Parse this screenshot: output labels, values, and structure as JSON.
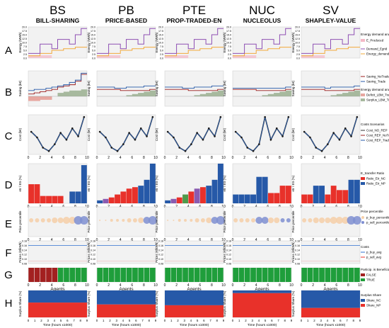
{
  "chart_data": {
    "type": "figure-grid",
    "columns": [
      {
        "abbr": "BS",
        "name": "BILL-SHARING"
      },
      {
        "abbr": "PB",
        "name": "PRICE-BASED"
      },
      {
        "abbr": "PTE",
        "name": "PROP-TRADED-EN"
      },
      {
        "abbr": "NUC",
        "name": "NUCLEOLUS"
      },
      {
        "abbr": "SV",
        "name": "SHAPLEY-VALUE"
      }
    ],
    "row_letters": [
      "A",
      "B",
      "C",
      "D",
      "E",
      "F",
      "G",
      "H"
    ],
    "agents": [
      1,
      2,
      3,
      4,
      5,
      6,
      7,
      8,
      9,
      10
    ],
    "agent_ticks": [
      "0",
      "2",
      "4",
      "6",
      "8",
      "10"
    ],
    "time_ticks": [
      "0",
      "1",
      "2",
      "3",
      "4",
      "5",
      "6",
      "7",
      "8",
      "9"
    ],
    "xlabel_agents": "Agents",
    "xlabel_time": "Time (hours x1000)",
    "colors": {
      "demand": "#f2a93b",
      "produced": "#8e4fb3",
      "pink": "#f4b8c6",
      "blue": "#2659a8",
      "red": "#e8312a",
      "green": "#1f9e3b",
      "darkred": "#9b1c1c",
      "grey": "#8a8a8a",
      "bubble": "#f6cfa8",
      "bubble_blue": "#7f8fd1",
      "line_f": "#2f6fd0",
      "gray_band": "#f0f0f0"
    },
    "rowA": {
      "ylabel": "Energy (MWh)",
      "yticks": [
        "0.0",
        "2.5",
        "5.0",
        "7.5",
        "10.0",
        "12.5",
        "15.0",
        "17.5",
        "20.0"
      ],
      "ylim": [
        0,
        20
      ],
      "demand": [
        [
          1.5,
          1.5,
          3,
          3,
          5,
          5,
          6,
          6,
          7,
          7
        ],
        [
          1.5,
          1.5,
          3,
          3,
          5,
          5,
          6,
          6,
          7,
          7
        ],
        [
          1.5,
          1.5,
          3,
          3,
          5,
          5,
          6,
          6,
          7,
          7
        ],
        [
          1.5,
          1.5,
          3,
          3,
          5,
          5,
          6,
          6,
          7,
          7
        ],
        [
          1.5,
          1.5,
          3,
          3,
          5,
          5,
          6,
          6,
          7,
          7
        ]
      ],
      "produced": [
        [
          3,
          3,
          9,
          9,
          6,
          12,
          12,
          9,
          15,
          19
        ],
        [
          3,
          3,
          9,
          9,
          6,
          12,
          12,
          9,
          15,
          19
        ],
        [
          3,
          3,
          9,
          9,
          6,
          12,
          12,
          9,
          15,
          19
        ],
        [
          3,
          3,
          9,
          9,
          6,
          12,
          12,
          9,
          15,
          19
        ],
        [
          3,
          3,
          9,
          9,
          6,
          12,
          12,
          9,
          15,
          19
        ]
      ],
      "legend_title": "Energy demand and production",
      "legend_items": [
        "E_Produced",
        "Demand_Egrid",
        "Energy_demand"
      ]
    },
    "rowB": {
      "ylabel": "Saving (k€)",
      "legend_items": [
        "Saving_NoTrade",
        "Saving_Trade"
      ],
      "legend2_title": "Energy demand and production",
      "legend2_items": [
        "Deficit_LBM_Trading < 0",
        "Surplus_LBM_Trading > 0"
      ],
      "notrade": [
        [
          0.02,
          0.03,
          0.04,
          0.05,
          0.06,
          0.08,
          0.09,
          0.1,
          0.13,
          0.19
        ],
        [
          0.06,
          0.06,
          0.06,
          0.06,
          0.05,
          0.05,
          0.05,
          0.05,
          0.05,
          0.06
        ],
        [
          0.06,
          0.06,
          0.06,
          0.06,
          0.05,
          0.05,
          0.05,
          0.05,
          0.05,
          0.06
        ],
        [
          0.06,
          0.06,
          0.06,
          0.06,
          0.05,
          0.05,
          0.05,
          0.05,
          0.05,
          0.06
        ],
        [
          0.06,
          0.06,
          0.06,
          0.06,
          0.05,
          0.05,
          0.05,
          0.05,
          0.05,
          0.06
        ]
      ],
      "trade": [
        [
          0.05,
          0.06,
          0.06,
          0.07,
          0.08,
          0.09,
          0.1,
          0.12,
          0.14,
          0.2
        ],
        [
          0.08,
          0.08,
          0.08,
          0.07,
          0.07,
          0.08,
          0.08,
          0.08,
          0.09,
          0.09
        ],
        [
          0.08,
          0.08,
          0.08,
          0.07,
          0.07,
          0.08,
          0.08,
          0.08,
          0.09,
          0.09
        ],
        [
          0.07,
          0.07,
          0.07,
          0.07,
          0.07,
          0.07,
          0.07,
          0.07,
          0.07,
          0.08
        ],
        [
          0.08,
          0.08,
          0.08,
          0.08,
          0.07,
          0.08,
          0.08,
          0.08,
          0.08,
          0.09
        ]
      ],
      "deficit": [
        [
          0.04,
          0.04,
          0.03,
          0.03,
          0,
          0,
          0,
          0,
          0,
          0
        ],
        [
          0,
          0,
          0,
          0,
          0,
          0,
          0,
          0,
          0,
          0
        ],
        [
          0,
          0,
          0,
          0,
          0,
          0,
          0,
          0,
          0,
          0
        ],
        [
          0,
          0,
          0,
          0,
          0,
          0,
          0,
          0,
          0,
          0
        ],
        [
          0,
          0,
          0,
          0,
          0,
          0,
          0,
          0,
          0,
          0
        ]
      ],
      "surplus": [
        [
          0,
          0,
          0,
          0,
          0,
          0.03,
          0.04,
          0.05,
          0.05,
          0.06
        ],
        [
          0,
          0,
          0,
          0,
          0,
          0.01,
          0.02,
          0.03,
          0.04,
          0.05
        ],
        [
          0,
          0,
          0,
          0,
          0,
          0.01,
          0.02,
          0.03,
          0.04,
          0.05
        ],
        [
          0,
          0,
          0,
          0,
          0,
          0.01,
          0.02,
          0.03,
          0.04,
          0.05
        ],
        [
          0,
          0,
          0,
          0,
          0,
          0.01,
          0.02,
          0.03,
          0.04,
          0.05
        ]
      ]
    },
    "rowC": {
      "ylabel": "Cost (k€)",
      "legend_title": "Costs Scenarios",
      "legend_items": [
        "Cost_NO_REP",
        "Cost_REP_NoTrade",
        "Cost_REP_Trade"
      ],
      "values": [
        [
          2,
          1.5,
          0.6,
          0.3,
          0.9,
          1.9,
          1.3,
          2.3,
          1.6,
          3.3
        ],
        [
          2,
          1.5,
          0.6,
          0.3,
          0.9,
          1.9,
          1.3,
          2.3,
          1.6,
          3.3
        ],
        [
          2,
          1.5,
          0.6,
          0.3,
          0.9,
          1.9,
          1.3,
          2.3,
          1.6,
          3.3
        ],
        [
          2,
          1.5,
          0.6,
          0.3,
          0.9,
          3.3,
          1.3,
          2.3,
          1.6,
          3.3
        ],
        [
          2,
          1.5,
          0.6,
          0.3,
          0.9,
          1.9,
          1.3,
          2.3,
          1.6,
          3.3
        ]
      ],
      "ylim": [
        0,
        3.5
      ]
    },
    "rowD": {
      "ylabel": "etr / Etr (%)",
      "legend_title": "E_transfer Ratio",
      "legend_items": [
        "Ratio_Etr_NC",
        "Ratio_Etr_NP"
      ],
      "values": [
        [
          13,
          13,
          5,
          5,
          5,
          5,
          0,
          8,
          8,
          26
        ],
        [
          2,
          3,
          4,
          6,
          8,
          10,
          11,
          12,
          16,
          27
        ],
        [
          2,
          3,
          4,
          6,
          8,
          10,
          11,
          12,
          16,
          27
        ],
        [
          6,
          6,
          6,
          6,
          18,
          18,
          7,
          7,
          12,
          12
        ],
        [
          6,
          6,
          12,
          12,
          6,
          12,
          9,
          9,
          16,
          16
        ]
      ],
      "series_color": [
        [
          "red",
          "red",
          "red",
          "red",
          "red",
          "red",
          "red",
          "blue",
          "blue",
          "blue"
        ],
        [
          "blue",
          "purple",
          "red",
          "red",
          "red",
          "red",
          "red",
          "blue",
          "blue",
          "blue"
        ],
        [
          "blue",
          "purple",
          "red",
          "green",
          "red",
          "purple",
          "red",
          "blue",
          "blue",
          "blue"
        ],
        [
          "blue",
          "blue",
          "blue",
          "blue",
          "blue",
          "blue",
          "red",
          "red",
          "red",
          "red"
        ],
        [
          "red",
          "red",
          "blue",
          "blue",
          "red",
          "red",
          "red",
          "red",
          "blue",
          "blue"
        ]
      ],
      "ylim": [
        0,
        27
      ]
    },
    "rowE": {
      "ylabel": "Price percentile",
      "legend_title": "Price percentile",
      "legend_items": [
        "p_buy_percentile",
        "p_sell_percentile"
      ],
      "sizes": [
        [
          3,
          3,
          3,
          3,
          4,
          4,
          5,
          5,
          6,
          6
        ],
        [
          1,
          1,
          2,
          2,
          2,
          3,
          3,
          4,
          5,
          6
        ],
        [
          1,
          1,
          2,
          2,
          2,
          3,
          3,
          4,
          5,
          6
        ],
        [
          3,
          3,
          3,
          3,
          5,
          5,
          4,
          4,
          3,
          3
        ],
        [
          3,
          3,
          4,
          4,
          4,
          5,
          5,
          5,
          6,
          6
        ]
      ]
    },
    "rowF": {
      "ylabel": "Prices (€/kWh)",
      "yticks": [
        "0.08",
        "0.10",
        "0.12",
        "0.14",
        "0.16",
        "0.18"
      ],
      "legend_title": "Costs",
      "legend_items": [
        "p_buy_avg",
        "p_sell_avg"
      ],
      "buy_avg": [
        0.16,
        0.16,
        0.16,
        0.16,
        0.16
      ],
      "sell_avg": [
        0.09,
        0.09,
        0.09,
        0.09,
        0.09
      ]
    },
    "rowG": {
      "legend_title": "Particip. is Beneficial?",
      "legend_items": [
        "FALSE",
        "TRUE"
      ],
      "beneficial": [
        [
          false,
          false,
          false,
          false,
          false,
          true,
          true,
          true,
          true,
          true
        ],
        [
          true,
          true,
          true,
          true,
          true,
          true,
          true,
          true,
          true,
          true
        ],
        [
          true,
          true,
          true,
          true,
          true,
          true,
          true,
          true,
          true,
          true
        ],
        [
          true,
          true,
          true,
          true,
          true,
          true,
          true,
          true,
          true,
          true
        ],
        [
          true,
          true,
          true,
          true,
          true,
          true,
          true,
          true,
          true,
          true
        ]
      ]
    },
    "rowH": {
      "ylabel": "Surplus Share (%)",
      "legend_title": "Surplus Share",
      "legend_items": [
        "Share_NC",
        "Share_NP"
      ],
      "nc_share": [
        0.45,
        0.52,
        0.55,
        0.1,
        0.65
      ]
    }
  }
}
